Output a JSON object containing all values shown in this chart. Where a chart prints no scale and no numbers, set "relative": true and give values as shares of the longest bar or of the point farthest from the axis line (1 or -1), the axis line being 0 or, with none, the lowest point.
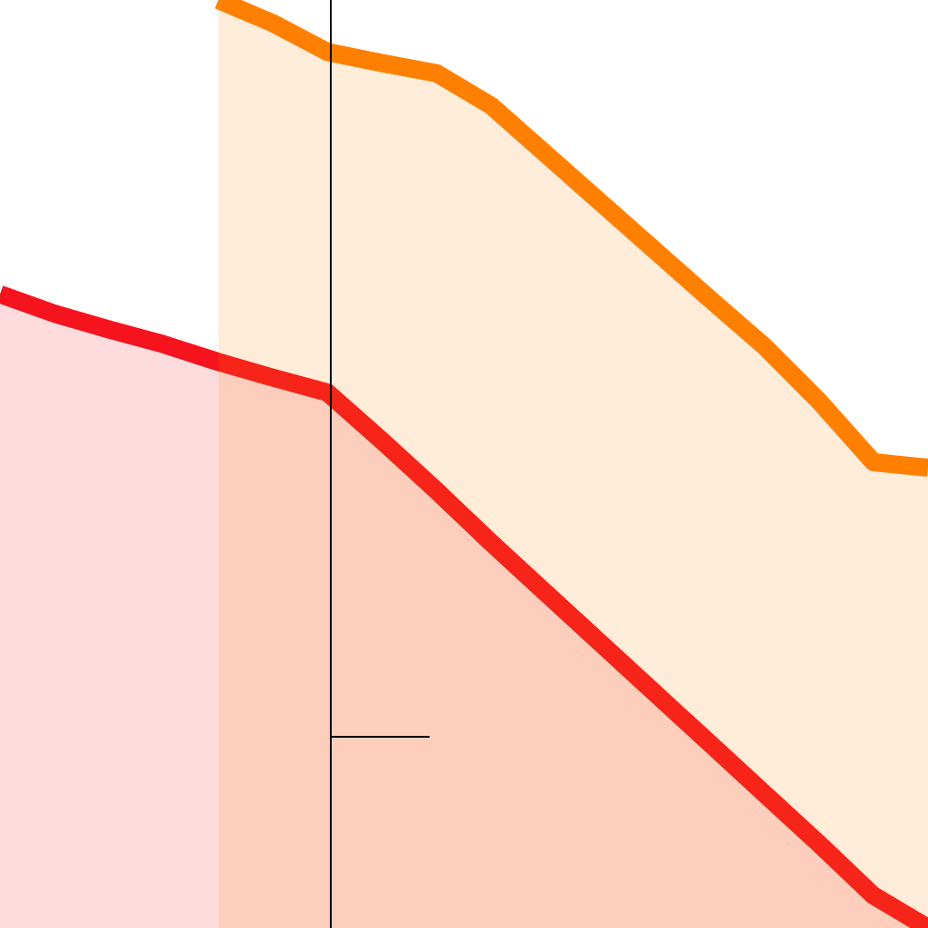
{
  "chart_data": {
    "type": "area",
    "relative": true,
    "categories": [
      null,
      null,
      null,
      null,
      null,
      null,
      null,
      null,
      null,
      null,
      null,
      null,
      null,
      null,
      null,
      null,
      null,
      null
    ],
    "series": [
      {
        "color": "#ff8000",
        "values": [
          null,
          null,
          null,
          null,
          1,
          0.975,
          0.944,
          0.932,
          0.921,
          0.886,
          0.834,
          0.782,
          0.73,
          0.678,
          0.627,
          0.568,
          0.502,
          0.496
        ]
      },
      {
        "color": "#f5141e",
        "values": [
          0.683,
          0.662,
          0.645,
          0.629,
          0.61,
          0.593,
          0.577,
          0.525,
          0.471,
          0.415,
          0.361,
          0.307,
          0.253,
          0.199,
          0.145,
          0.091,
          0.035,
          0
        ]
      }
    ],
    "legend": false
  }
}
